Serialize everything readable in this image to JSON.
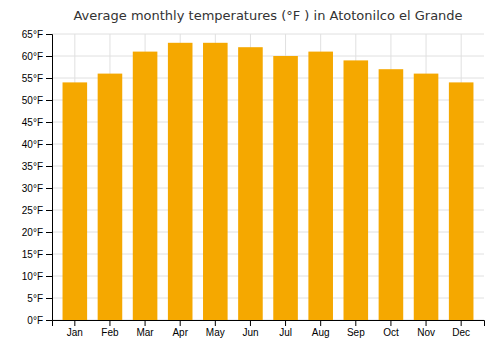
{
  "chart_data": {
    "type": "bar",
    "title": "Average monthly temperatures (°F ) in Atotonilco el Grande",
    "categories": [
      "Jan",
      "Feb",
      "Mar",
      "Apr",
      "May",
      "Jun",
      "Jul",
      "Aug",
      "Sep",
      "Oct",
      "Nov",
      "Dec"
    ],
    "values": [
      54,
      56,
      61,
      63,
      63,
      62,
      60,
      61,
      59,
      57,
      56,
      54
    ],
    "color": "#F5A800",
    "ylim": [
      0,
      65
    ],
    "yticks": [
      {
        "value": 0,
        "label": "0°F"
      },
      {
        "value": 5,
        "label": "5°F"
      },
      {
        "value": 10,
        "label": "10°F"
      },
      {
        "value": 15,
        "label": "15°F"
      },
      {
        "value": 20,
        "label": "20°F"
      },
      {
        "value": 25,
        "label": "25°F"
      },
      {
        "value": 30,
        "label": "30°F"
      },
      {
        "value": 35,
        "label": "35°F"
      },
      {
        "value": 40,
        "label": "40°F"
      },
      {
        "value": 45,
        "label": "45°F"
      },
      {
        "value": 50,
        "label": "50°F"
      },
      {
        "value": 55,
        "label": "55°F"
      },
      {
        "value": 60,
        "label": "60°F"
      },
      {
        "value": 65,
        "label": "65°F"
      }
    ],
    "grid": true
  }
}
